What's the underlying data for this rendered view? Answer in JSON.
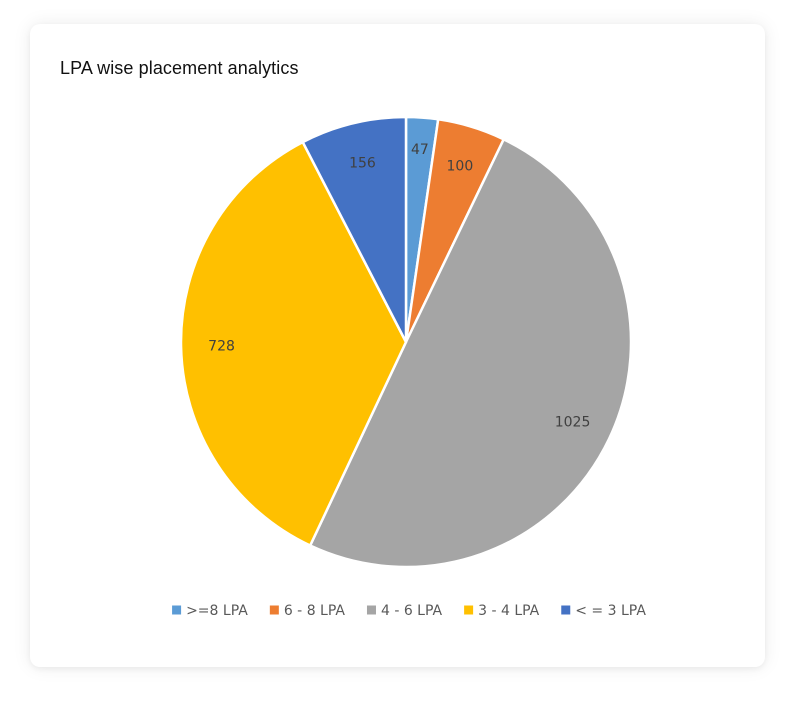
{
  "chart_data": {
    "type": "pie",
    "title": "LPA wise placement analytics",
    "categories": [
      ">=8 LPA",
      "6 - 8 LPA",
      "4 - 6 LPA",
      "3 - 4 LPA",
      "< = 3 LPA"
    ],
    "values": [
      47,
      100,
      1025,
      728,
      156
    ],
    "colors": [
      "#5B9BD5",
      "#ED7D31",
      "#A5A5A5",
      "#FFC000",
      "#4472C4"
    ],
    "legend_position": "bottom",
    "data_labels": true
  }
}
